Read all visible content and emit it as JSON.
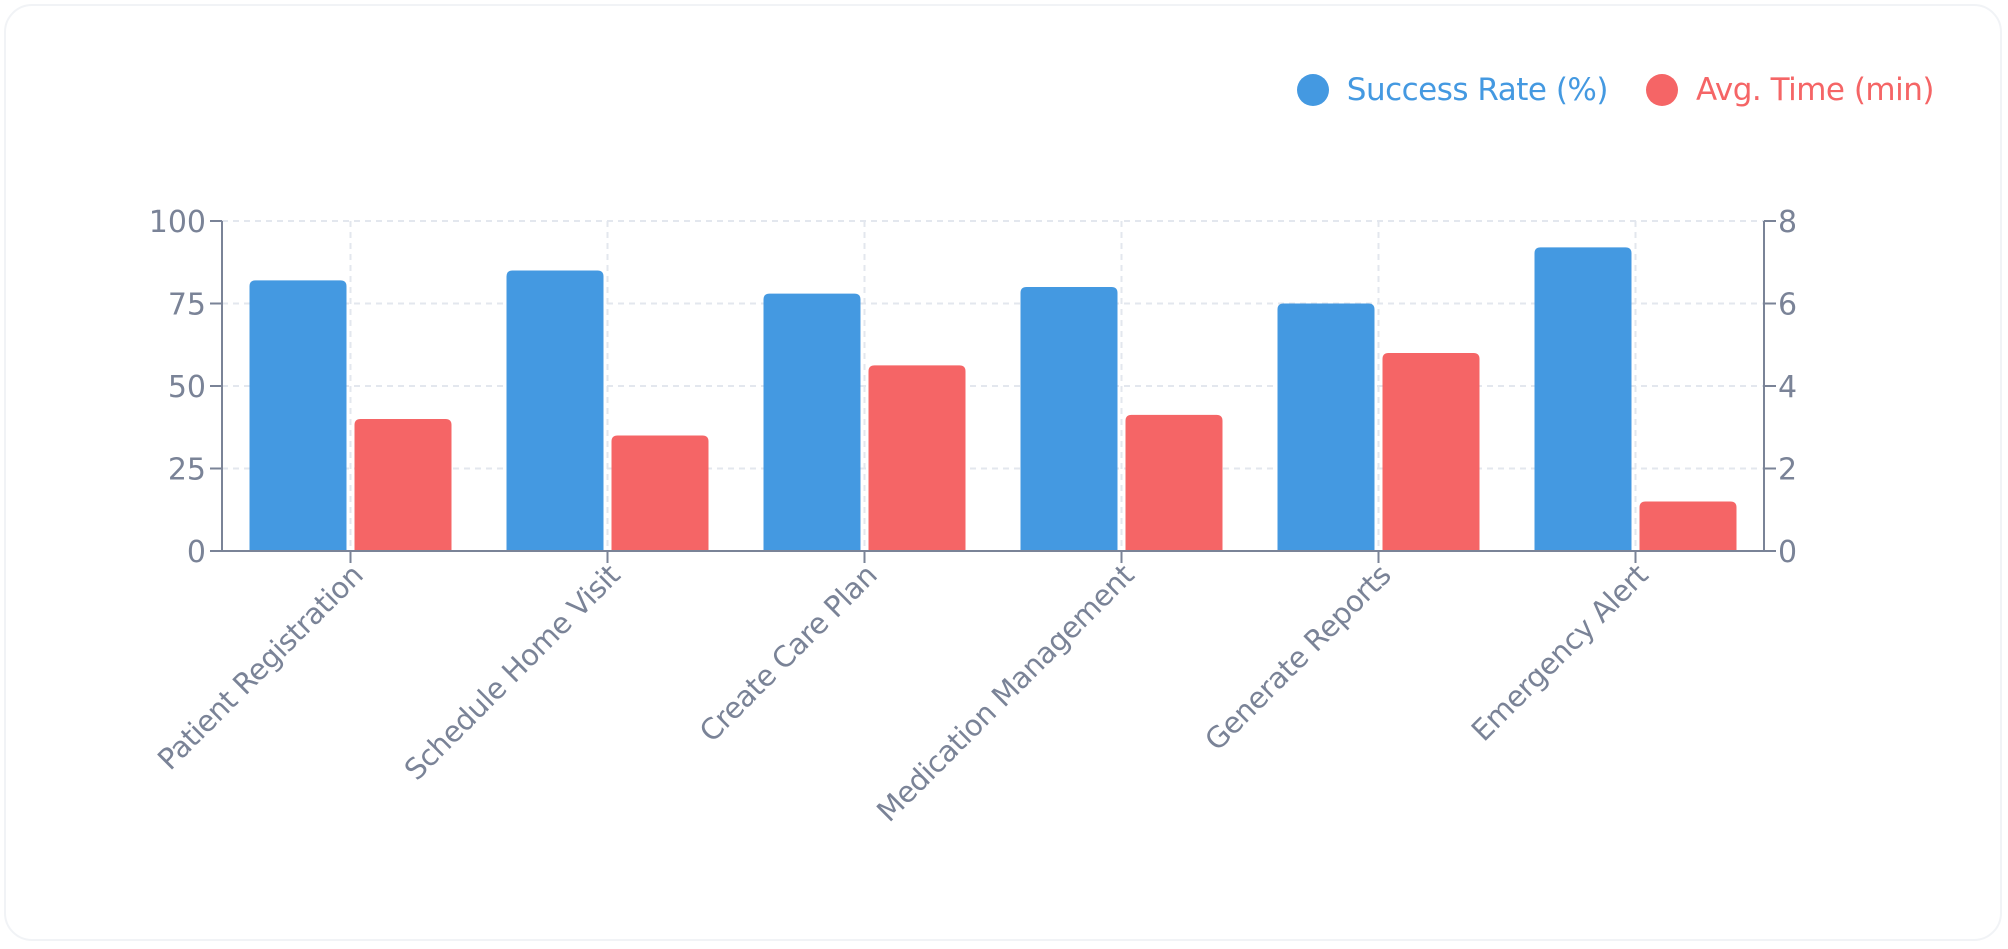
{
  "chart_data": {
    "type": "bar",
    "categories": [
      "Patient Registration",
      "Schedule Home Visit",
      "Create Care Plan",
      "Medication Management",
      "Generate Reports",
      "Emergency Alert"
    ],
    "series": [
      {
        "name": "Success Rate (%)",
        "axis": "left",
        "color": "#4499e1",
        "values": [
          82,
          85,
          78,
          80,
          75,
          92
        ]
      },
      {
        "name": "Avg. Time (min)",
        "axis": "right",
        "color": "#f56566",
        "values": [
          3.2,
          2.8,
          4.5,
          3.3,
          4.8,
          1.2
        ]
      }
    ],
    "y_left": {
      "ylim": [
        0,
        100
      ],
      "ticks": [
        "0",
        "25",
        "50",
        "75",
        "100"
      ]
    },
    "y_right": {
      "ylim": [
        0,
        8
      ],
      "ticks": [
        "0",
        "2",
        "4",
        "6",
        "8"
      ]
    },
    "grid": true,
    "legend_position": "top-right",
    "axis_color": "#7a8397"
  }
}
